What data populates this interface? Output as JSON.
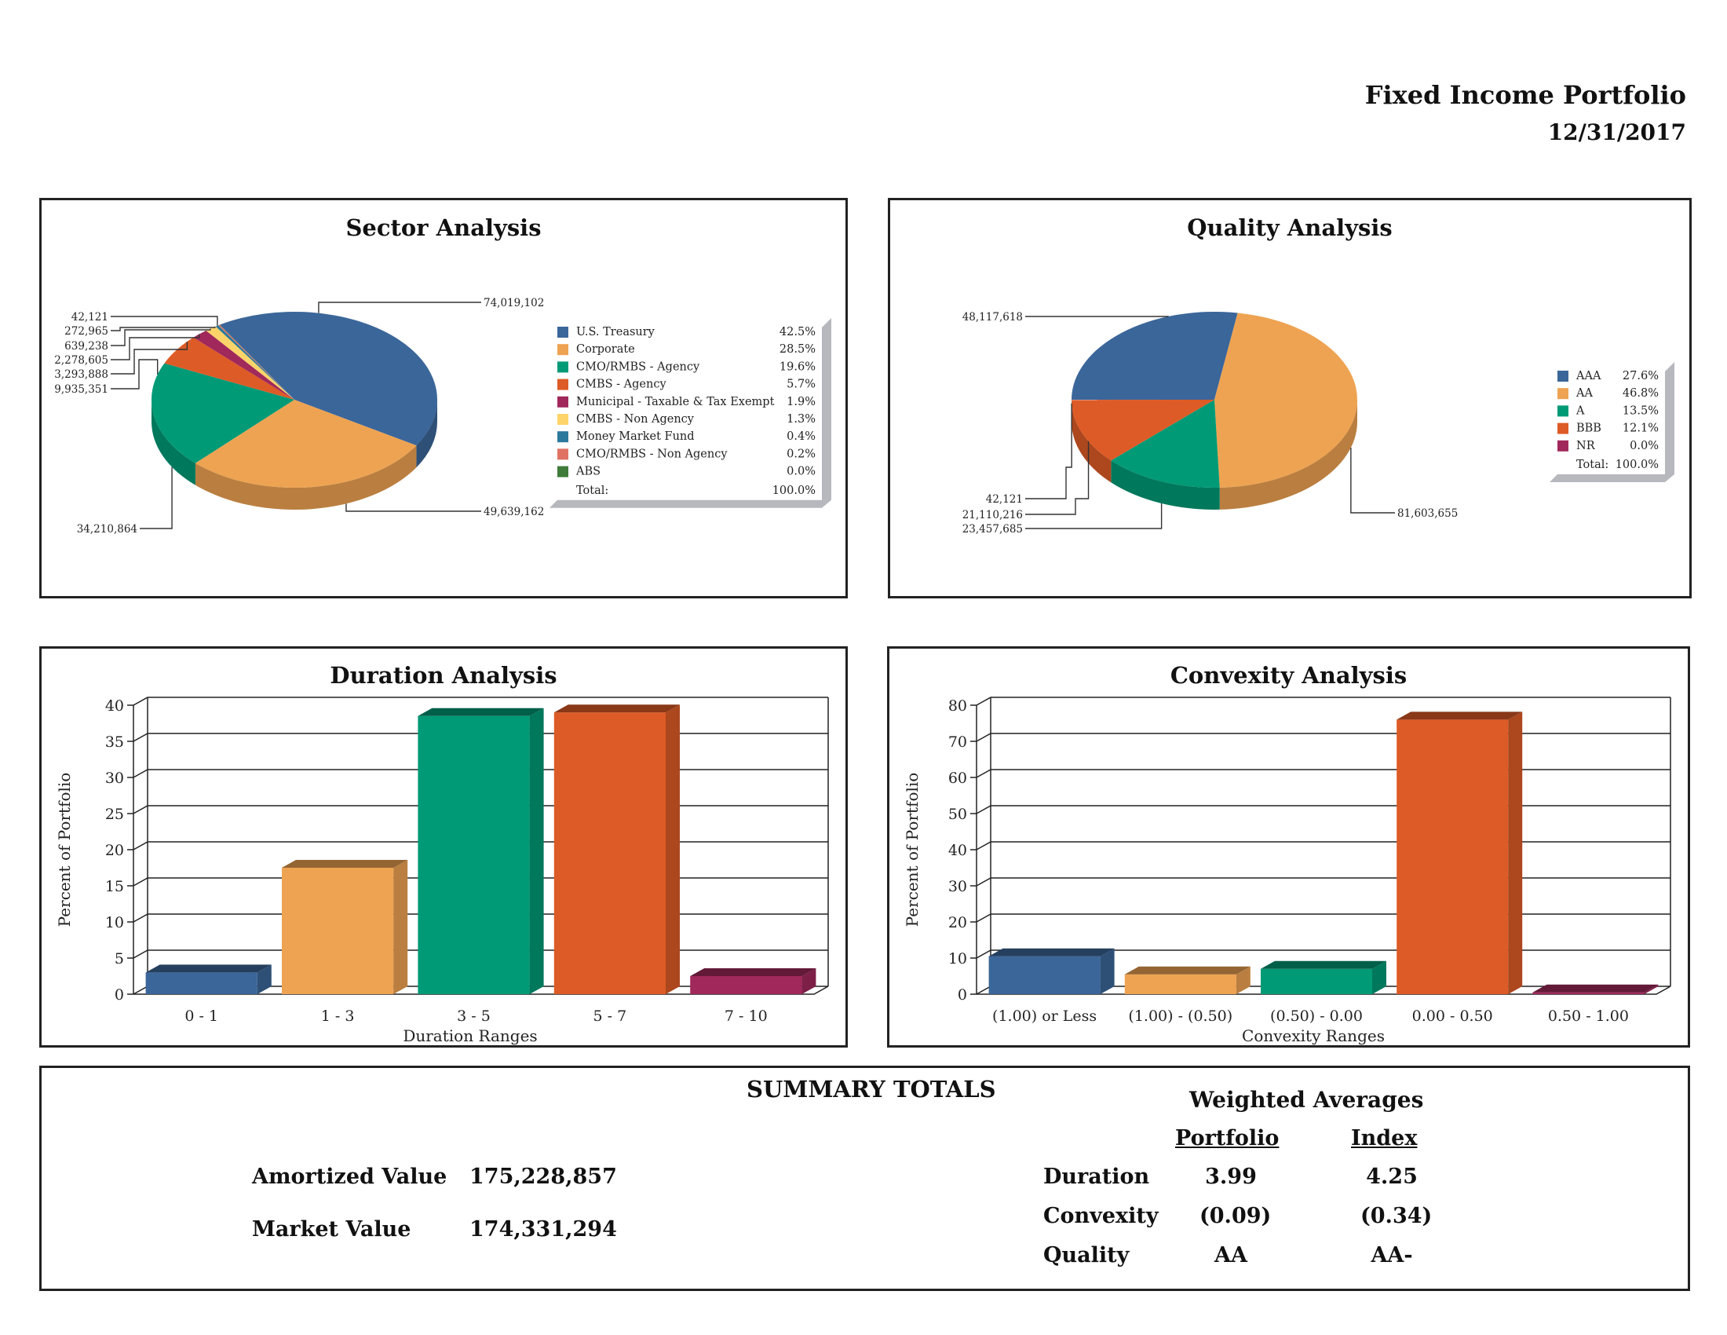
{
  "header": {
    "title": "Fixed Income Portfolio",
    "date": "12/31/2017"
  },
  "chart_data": [
    {
      "type": "pie",
      "title": "Sector Analysis",
      "categories": [
        "U.S. Treasury",
        "Corporate",
        "CMO/RMBS - Agency",
        "CMBS - Agency",
        "Municipal - Taxable & Tax Exempt",
        "CMBS - Non Agency",
        "Money Market Fund",
        "CMO/RMBS - Non Agency",
        "ABS"
      ],
      "percent_labels": [
        "42.5%",
        "28.5%",
        "19.6%",
        "5.7%",
        "1.9%",
        "1.3%",
        "0.4%",
        "0.2%",
        "0.0%"
      ],
      "values": [
        74019102,
        49639162,
        34210864,
        9935351,
        3293888,
        2278605,
        639238,
        272965,
        42121
      ],
      "value_labels": [
        "74,019,102",
        "49,639,162",
        "34,210,864",
        "9,935,351",
        "3,293,888",
        "2,278,605",
        "639,238",
        "272,965",
        "42,121"
      ],
      "colors": [
        "#3b6699",
        "#eea352",
        "#009a76",
        "#dd5b26",
        "#a0285b",
        "#fdd46a",
        "#2b799c",
        "#e07264",
        "#3f7b3a"
      ],
      "total_label": "Total:",
      "total_value": "100.0%",
      "legend_position": "right"
    },
    {
      "type": "pie",
      "title": "Quality Analysis",
      "categories": [
        "AAA",
        "AA",
        "A",
        "BBB",
        "NR"
      ],
      "percent_labels": [
        "27.6%",
        "46.8%",
        "13.5%",
        "12.1%",
        "0.0%"
      ],
      "values": [
        48117618,
        81603655,
        23457685,
        21110216,
        42121
      ],
      "value_labels": [
        "48,117,618",
        "81,603,655",
        "23,457,685",
        "21,110,216",
        "42,121"
      ],
      "colors": [
        "#3b6699",
        "#eea352",
        "#009a76",
        "#dd5b26",
        "#a0285b"
      ],
      "total_label": "Total:",
      "total_value": "100.0%",
      "legend_position": "right"
    },
    {
      "type": "bar",
      "title": "Duration Analysis",
      "categories": [
        "0 - 1",
        "1 - 3",
        "3 - 5",
        "5 - 7",
        "7 - 10"
      ],
      "values": [
        3,
        17.5,
        38.5,
        39,
        2.5
      ],
      "colors": [
        "#3b6699",
        "#eea352",
        "#009a76",
        "#dd5b26",
        "#a0285b"
      ],
      "xlabel": "Duration Ranges",
      "ylabel": "Percent of Portfolio",
      "ylim": [
        0,
        40
      ],
      "yticks": [
        0,
        5,
        10,
        15,
        20,
        25,
        30,
        35,
        40
      ],
      "grid": true
    },
    {
      "type": "bar",
      "title": "Convexity Analysis",
      "categories": [
        "(1.00) or Less",
        "(1.00) - (0.50)",
        "(0.50) - 0.00",
        "0.00 - 0.50",
        "0.50 - 1.00"
      ],
      "values": [
        10.5,
        5.5,
        7,
        76,
        0.5
      ],
      "colors": [
        "#3b6699",
        "#eea352",
        "#009a76",
        "#dd5b26",
        "#a0285b"
      ],
      "xlabel": "Convexity Ranges",
      "ylabel": "Percent of Portfolio",
      "ylim": [
        0,
        80
      ],
      "yticks": [
        0,
        10,
        20,
        30,
        40,
        50,
        60,
        70,
        80
      ],
      "grid": true
    }
  ],
  "summary": {
    "title": "SUMMARY TOTALS",
    "amortized_label": "Amortized Value",
    "amortized_value": "175,228,857",
    "market_label": "Market Value",
    "market_value": "174,331,294",
    "weighted_title": "Weighted Averages",
    "portfolio_header": "Portfolio",
    "index_header": "Index",
    "rows": [
      {
        "label": "Duration",
        "portfolio": "3.99",
        "index": "4.25"
      },
      {
        "label": "Convexity",
        "portfolio": "(0.09)",
        "index": "(0.34)"
      },
      {
        "label": "Quality",
        "portfolio": "AA",
        "index": "AA-"
      }
    ]
  }
}
